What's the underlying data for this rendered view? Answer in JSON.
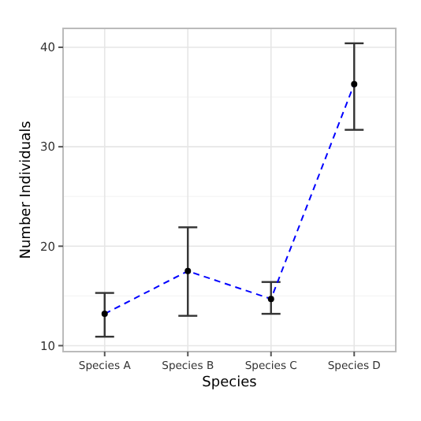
{
  "chart_data": {
    "type": "line",
    "xlabel": "Species",
    "ylabel": "Number Individuals",
    "categories": [
      "Species A",
      "Species B",
      "Species C",
      "Species D"
    ],
    "series": [
      {
        "color": "#0000ff",
        "values": [
          13.2,
          17.5,
          14.7,
          36.3
        ],
        "errors": [
          [
            10.9,
            15.3
          ],
          [
            13.0,
            21.9
          ],
          [
            13.2,
            16.4
          ],
          [
            31.7,
            40.4
          ]
        ]
      }
    ],
    "ylim": [
      9.4,
      41.9
    ],
    "yticks": [
      10,
      20,
      30,
      40
    ],
    "grid": true,
    "marker": "circle",
    "line_style": "dashed"
  }
}
